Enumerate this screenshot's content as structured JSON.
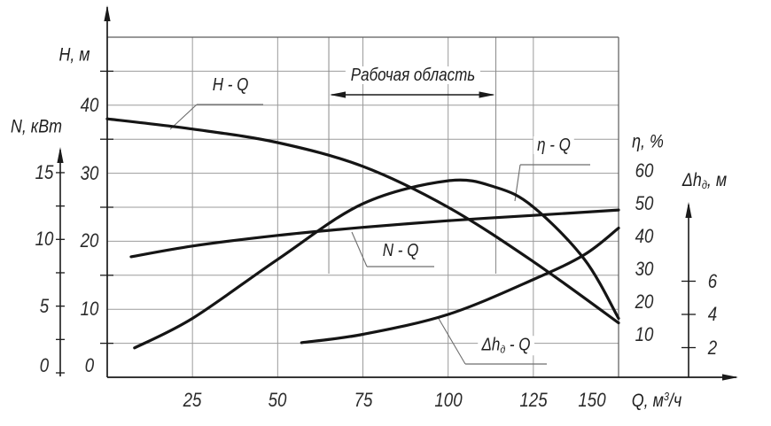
{
  "chart_data": {
    "type": "line",
    "description": "Pump performance curves: head, power, efficiency and cavitation margin versus flow rate",
    "grid": true,
    "x_axis": {
      "label": {
        "base": "Q, м",
        "sup": "3",
        "rest": "/ч"
      },
      "range": [
        0,
        150
      ],
      "ticks": [
        25,
        50,
        75,
        100,
        125,
        150
      ]
    },
    "axes": [
      {
        "id": "H",
        "label": "H, м",
        "ticks": [
          40,
          30,
          20,
          10,
          0
        ],
        "range": [
          0,
          50
        ],
        "side": "left"
      },
      {
        "id": "N",
        "label": "N, кВт",
        "ticks": [
          15,
          10,
          5,
          0
        ],
        "range": [
          0,
          17
        ],
        "side": "left-outer"
      },
      {
        "id": "eta",
        "label": "η, %",
        "ticks": [
          60,
          50,
          40,
          30,
          20,
          10
        ],
        "range": [
          0,
          70
        ],
        "side": "right"
      },
      {
        "id": "dh",
        "label": {
          "base": "Δh",
          "sub": "д",
          "rest": ", м"
        },
        "ticks": [
          6,
          4,
          2
        ],
        "range": [
          0,
          10
        ],
        "side": "right-outer"
      }
    ],
    "working_area": {
      "label": "Рабочая область",
      "q_from": 65,
      "q_to": 114
    },
    "series": [
      {
        "name": "H-Q",
        "label": "H - Q",
        "axis": "H",
        "points": [
          [
            0,
            38
          ],
          [
            25,
            36.5
          ],
          [
            50,
            34.5
          ],
          [
            75,
            31
          ],
          [
            100,
            25
          ],
          [
            125,
            17
          ],
          [
            150,
            8
          ]
        ]
      },
      {
        "name": "N-Q",
        "label": "N - Q",
        "axis": "N",
        "points": [
          [
            7,
            8.7
          ],
          [
            25,
            9.5
          ],
          [
            50,
            10.3
          ],
          [
            75,
            10.9
          ],
          [
            100,
            11.4
          ],
          [
            125,
            11.8
          ],
          [
            150,
            12.2
          ]
        ]
      },
      {
        "name": "eta-Q",
        "label": "η - Q",
        "axis": "eta",
        "points": [
          [
            8,
            6
          ],
          [
            25,
            15
          ],
          [
            50,
            33
          ],
          [
            75,
            50
          ],
          [
            100,
            57
          ],
          [
            114,
            55
          ],
          [
            125,
            49
          ],
          [
            140,
            33
          ],
          [
            150,
            15
          ]
        ]
      },
      {
        "name": "dh-Q",
        "label": {
          "base": "Δh",
          "sub": "д",
          "rest": " - Q"
        },
        "axis": "dh",
        "points": [
          [
            57,
            2.3
          ],
          [
            75,
            2.8
          ],
          [
            100,
            4
          ],
          [
            125,
            6.1
          ],
          [
            140,
            7.6
          ],
          [
            150,
            9.2
          ]
        ]
      }
    ]
  }
}
